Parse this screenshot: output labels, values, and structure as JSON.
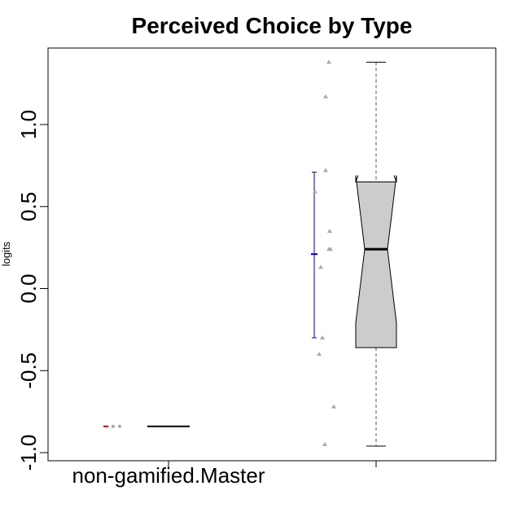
{
  "chart_data": {
    "type": "boxplot",
    "title": "Perceived Choice by Type",
    "ylabel": "logits",
    "xlabel": "",
    "ylim": [
      -1.05,
      1.4
    ],
    "y_ticks": [
      -1.0,
      -0.5,
      0.0,
      0.5,
      1.0
    ],
    "y_tick_labels": [
      "-1.0",
      "-0.5",
      "0.0",
      "0.5",
      "1.0"
    ],
    "categories": [
      "non-gamified.Master",
      ""
    ],
    "groups": [
      {
        "label": "non-gamified.Master",
        "points": [
          -0.84,
          -0.84
        ],
        "mean": -0.84,
        "ci": [
          -0.84,
          -0.84
        ],
        "box": {
          "min": -0.84,
          "q1": -0.84,
          "median": -0.84,
          "q3": -0.84,
          "max": -0.84,
          "notch_low": -0.84,
          "notch_high": -0.84
        }
      },
      {
        "label": "",
        "points": [
          1.38,
          1.17,
          0.72,
          0.59,
          0.35,
          0.24,
          0.24,
          0.13,
          -0.3,
          -0.4,
          -0.72,
          -0.95
        ],
        "mean": 0.21,
        "ci": [
          -0.3,
          0.71
        ],
        "box": {
          "min": -0.96,
          "q1": -0.36,
          "median": 0.24,
          "q3": 0.65,
          "max": 1.38,
          "notch_low": -0.21,
          "notch_high": 0.69
        }
      }
    ],
    "colors": {
      "box_fill": "#cccccc",
      "points": "#aaaaaa",
      "ci_line": "#0000cc",
      "ci_line_group1": "#cc0000",
      "box_stroke": "#000000"
    }
  }
}
